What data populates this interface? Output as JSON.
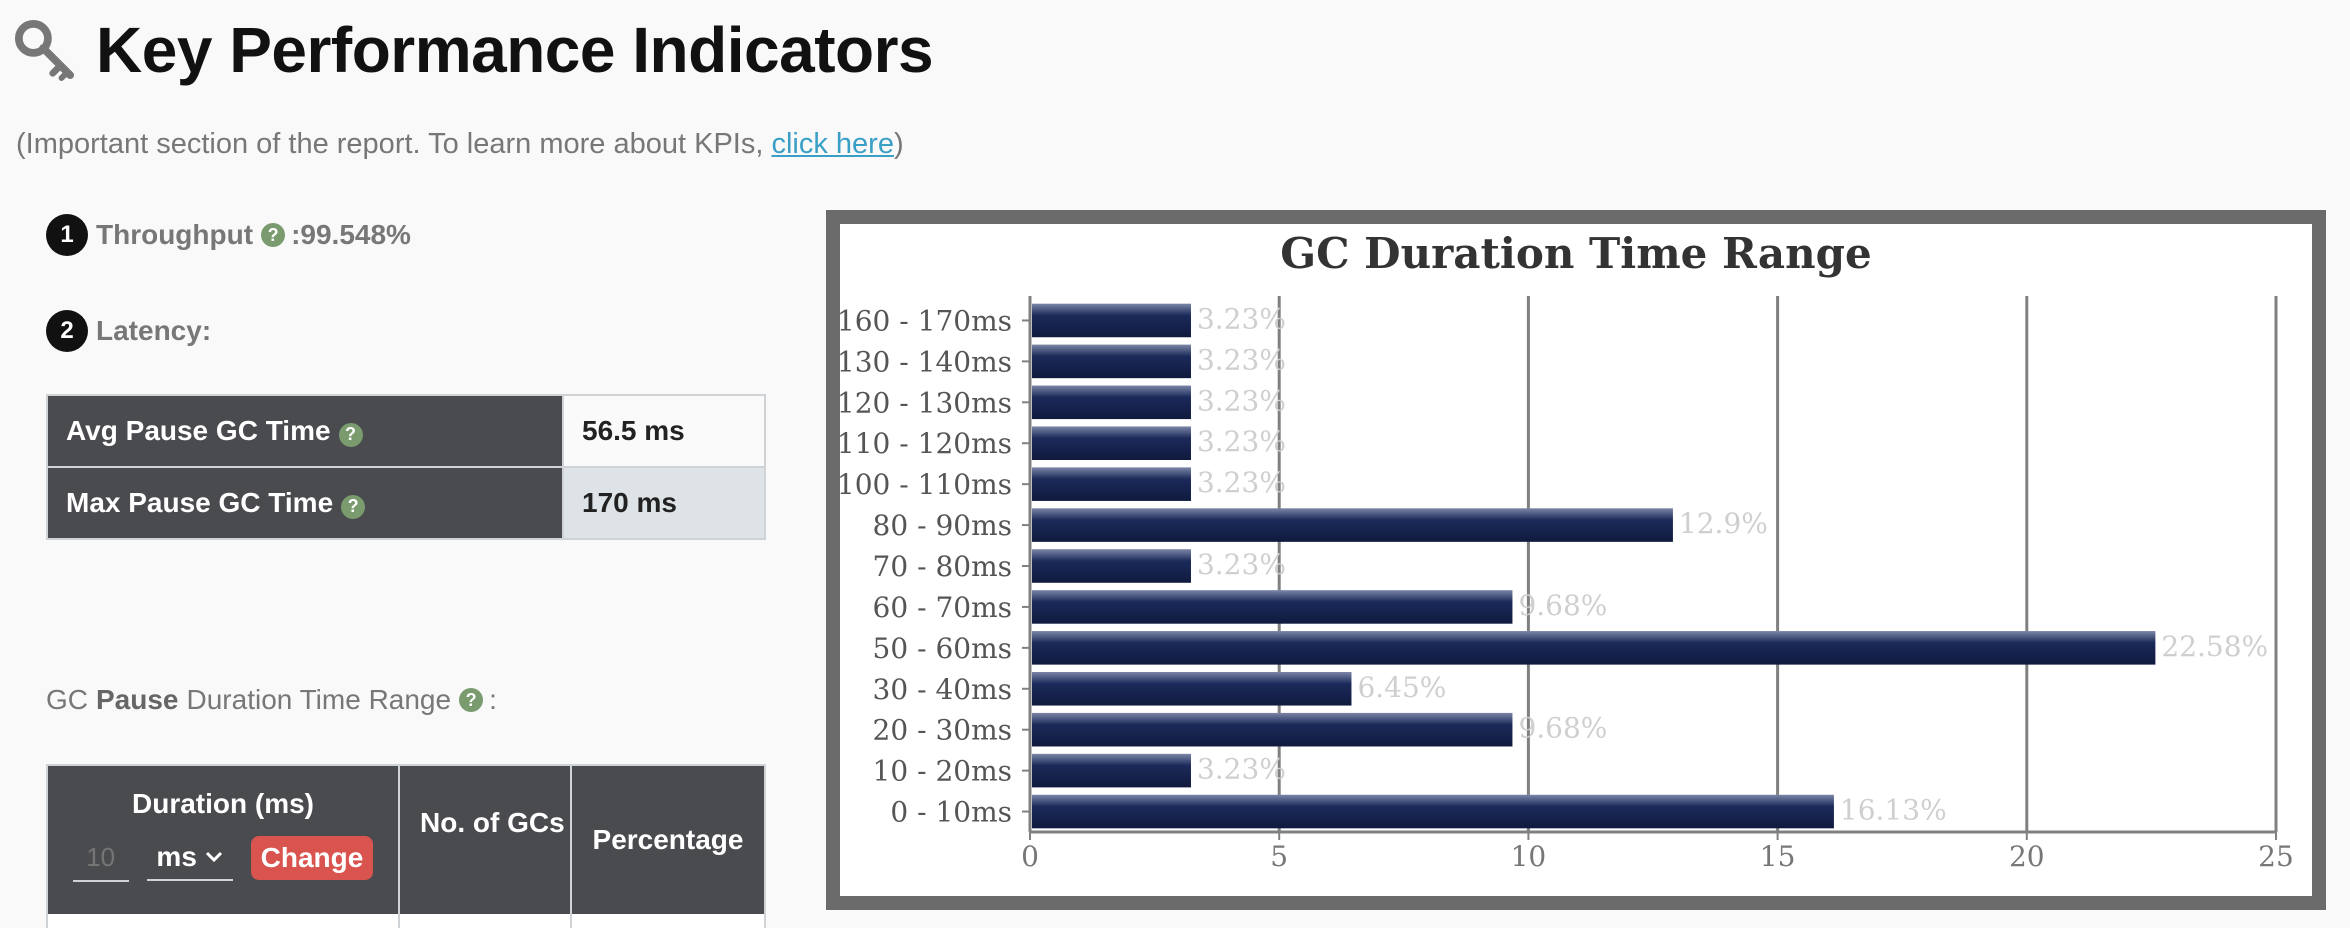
{
  "header": {
    "title": "Key Performance Indicators",
    "icon": "key-icon"
  },
  "intro": {
    "prefix": "(Important section of the report. To learn more about KPIs, ",
    "link": "click here",
    "suffix": ")"
  },
  "kpi": {
    "throughput": {
      "number": "1",
      "label": "Throughput",
      "separator": ": ",
      "value": "99.548%"
    },
    "latency": {
      "number": "2",
      "label": "Latency:"
    },
    "pause_table": [
      {
        "label": "Avg Pause GC Time",
        "value": "56.5 ms"
      },
      {
        "label": "Max Pause GC Time",
        "value": "170 ms"
      }
    ]
  },
  "range_section": {
    "prefix": "GC",
    "bold": "Pause",
    "suffix": "Duration Time Range",
    "colon": ":"
  },
  "duration_table": {
    "col_duration": "Duration (ms)",
    "col_gcs": "No. of GCs",
    "col_percentage": "Percentage",
    "input_value": "10",
    "unit": "ms",
    "change_button": "Change"
  },
  "colors": {
    "bar": "#1b2a5a",
    "frame": "#6b6b6b",
    "header_bg": "#4a4b4f",
    "help": "#7a9b6e",
    "change": "#d9534f"
  },
  "chart_data": {
    "type": "bar",
    "orientation": "horizontal",
    "title": "GC Duration Time Range",
    "categories": [
      "160 - 170ms",
      "130 - 140ms",
      "120 - 130ms",
      "110 - 120ms",
      "100 - 110ms",
      "80 - 90ms",
      "70 - 80ms",
      "60 - 70ms",
      "50 - 60ms",
      "30 - 40ms",
      "20 - 30ms",
      "10 - 20ms",
      "0 - 10ms"
    ],
    "values": [
      3.23,
      3.23,
      3.23,
      3.23,
      3.23,
      12.9,
      3.23,
      9.68,
      22.58,
      6.45,
      9.68,
      3.23,
      16.13
    ],
    "labels": [
      "3.23%",
      "3.23%",
      "3.23%",
      "3.23%",
      "3.23%",
      "12.9%",
      "3.23%",
      "9.68%",
      "22.58%",
      "6.45%",
      "9.68%",
      "3.23%",
      "16.13%"
    ],
    "xlim": [
      0,
      25
    ],
    "xticks": [
      "0",
      "5",
      "10",
      "15",
      "20",
      "25"
    ],
    "grid": true
  }
}
